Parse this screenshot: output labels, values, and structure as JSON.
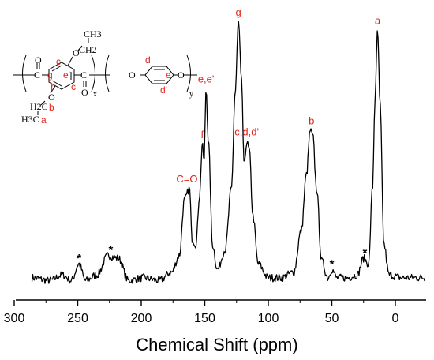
{
  "chart_data": {
    "type": "line",
    "xlabel": "Chemical Shift (ppm)",
    "ylabel": "",
    "xlim": [
      286,
      -24
    ],
    "ylim": [
      0,
      1
    ],
    "x_reversed": true,
    "x_ticks": [
      300,
      250,
      200,
      150,
      100,
      50,
      0
    ],
    "grid": false,
    "legend": "none",
    "series": [
      {
        "points": [
          [
            286,
            0.08
          ],
          [
            272,
            0.07
          ],
          [
            262,
            0.09
          ],
          [
            255,
            0.07
          ],
          [
            249,
            0.13
          ],
          [
            244,
            0.07
          ],
          [
            235,
            0.09
          ],
          [
            226,
            0.16
          ],
          [
            218,
            0.15
          ],
          [
            210,
            0.07
          ],
          [
            198,
            0.08
          ],
          [
            186,
            0.07
          ],
          [
            176,
            0.1
          ],
          [
            170,
            0.16
          ],
          [
            166,
            0.36
          ],
          [
            162,
            0.4
          ],
          [
            160,
            0.22
          ],
          [
            157,
            0.2
          ],
          [
            154,
            0.38
          ],
          [
            152,
            0.56
          ],
          [
            150.5,
            0.5
          ],
          [
            149,
            0.76
          ],
          [
            147,
            0.56
          ],
          [
            144,
            0.2
          ],
          [
            140,
            0.11
          ],
          [
            134,
            0.18
          ],
          [
            129,
            0.4
          ],
          [
            126,
            0.75
          ],
          [
            123.5,
            1.0
          ],
          [
            121,
            0.78
          ],
          [
            119,
            0.48
          ],
          [
            117,
            0.57
          ],
          [
            115,
            0.54
          ],
          [
            112,
            0.3
          ],
          [
            108,
            0.13
          ],
          [
            100,
            0.08
          ],
          [
            90,
            0.08
          ],
          [
            80,
            0.1
          ],
          [
            74,
            0.25
          ],
          [
            70,
            0.45
          ],
          [
            67,
            0.61
          ],
          [
            65,
            0.59
          ],
          [
            62,
            0.4
          ],
          [
            58,
            0.14
          ],
          [
            53,
            0.08
          ],
          [
            50,
            0.11
          ],
          [
            46,
            0.08
          ],
          [
            38,
            0.08
          ],
          [
            30,
            0.09
          ],
          [
            25,
            0.15
          ],
          [
            21,
            0.13
          ],
          [
            18,
            0.4
          ],
          [
            16,
            0.72
          ],
          [
            14,
            0.97
          ],
          [
            12,
            0.7
          ],
          [
            9,
            0.2
          ],
          [
            5,
            0.09
          ],
          [
            -5,
            0.08
          ],
          [
            -15,
            0.08
          ],
          [
            -24,
            0.08
          ]
        ]
      }
    ],
    "annotations": [
      {
        "text": "a",
        "x": 14,
        "y": 0.97
      },
      {
        "text": "g",
        "x": 123.5,
        "y": 1.0
      },
      {
        "text": "b",
        "x": 66,
        "y": 0.61
      },
      {
        "text": "e,e'",
        "x": 149,
        "y": 0.76
      },
      {
        "text": "f",
        "x": 152,
        "y": 0.56
      },
      {
        "text": "c,d,d'",
        "x": 117,
        "y": 0.57
      },
      {
        "text": "C=O",
        "x": 164,
        "y": 0.4
      },
      {
        "text": "*",
        "x": 249,
        "y": 0.13
      },
      {
        "text": "*",
        "x": 224,
        "y": 0.16
      },
      {
        "text": "*",
        "x": 50,
        "y": 0.11
      },
      {
        "text": "*",
        "x": 24,
        "y": 0.15
      }
    ]
  },
  "structure": {
    "left_sites": {
      "c_top": "c",
      "g": "g",
      "e_prime": "e'",
      "c_bottom": "c",
      "f": "f",
      "b": "b",
      "a": "a"
    },
    "right_sites": {
      "d": "d",
      "e": "e",
      "d_prime": "d'"
    },
    "groups": {
      "ch3_top": "CH3",
      "ch2_top": "CH2",
      "h2c": "H2C",
      "h3c": "H3C"
    },
    "subscripts": {
      "x": "x",
      "y": "y"
    }
  }
}
